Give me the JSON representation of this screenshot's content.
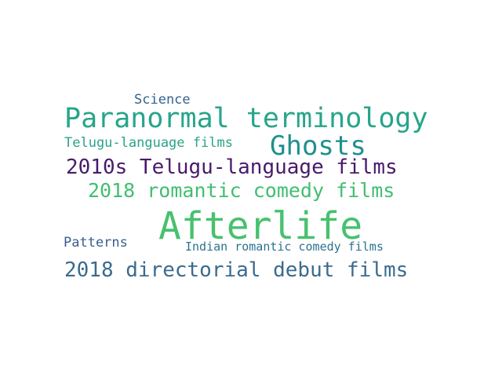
{
  "word_cloud": {
    "words": [
      {
        "text": "Afterlife",
        "color": "#47c16e"
      },
      {
        "text": "Paranormal terminology",
        "color": "#27a58b"
      },
      {
        "text": "Ghosts",
        "color": "#21908d"
      },
      {
        "text": "2010s Telugu-language films",
        "color": "#481a6c"
      },
      {
        "text": "2018 romantic comedy films",
        "color": "#42be71"
      },
      {
        "text": "2018 directorial debut films",
        "color": "#3b6b8e"
      },
      {
        "text": "Science",
        "color": "#33638d"
      },
      {
        "text": "Telugu-language films",
        "color": "#2aa387"
      },
      {
        "text": "Patterns",
        "color": "#3a5d8c"
      },
      {
        "text": "Indian romantic comedy films",
        "color": "#2c728e"
      }
    ]
  }
}
